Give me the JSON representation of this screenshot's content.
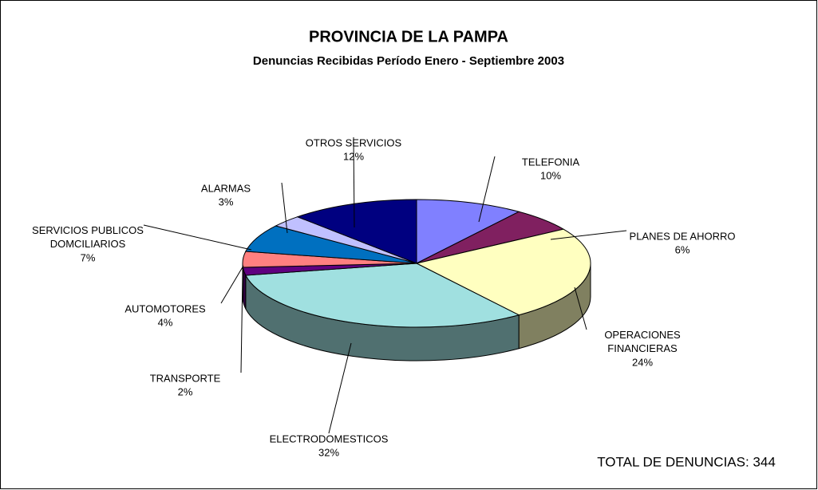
{
  "chart_data": {
    "type": "pie",
    "title": "PROVINCIA DE LA PAMPA",
    "subtitle": "Denuncias Recibidas Período Enero - Septiembre 2003",
    "annotation": "TOTAL DE DENUNCIAS: 344",
    "categories": [
      "TELEFONIA",
      "PLANES DE AHORRO",
      "OPERACIONES FINANCIERAS",
      "ELECTRODOMESTICOS",
      "TRANSPORTE",
      "AUTOMOTORES",
      "SERVICIOS PUBLICOS DOMCILIARIOS",
      "ALARMAS",
      "OTROS SERVICIOS"
    ],
    "values": [
      10,
      6,
      24,
      32,
      2,
      4,
      7,
      3,
      12
    ],
    "value_labels": [
      "10%",
      "6%",
      "24%",
      "32%",
      "2%",
      "4%",
      "7%",
      "3%",
      "12%"
    ],
    "colors": [
      "#8080ff",
      "#802060",
      "#ffffc0",
      "#a0e0e0",
      "#600080",
      "#ff8080",
      "#0070c0",
      "#c0c0ff",
      "#000080"
    ]
  }
}
